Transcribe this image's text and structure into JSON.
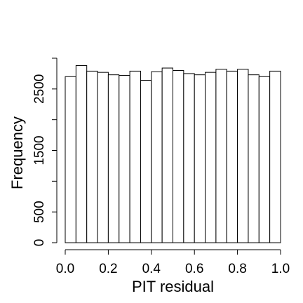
{
  "chart_data": {
    "type": "bar",
    "subtype": "histogram",
    "title": "",
    "xlabel": "PIT residual",
    "ylabel": "Frequency",
    "xlim": [
      0.0,
      1.0
    ],
    "ylim": [
      0,
      3000
    ],
    "bin_width": 0.05,
    "bins": [
      {
        "x0": 0.0,
        "x1": 0.05,
        "value": 2700
      },
      {
        "x0": 0.05,
        "x1": 0.1,
        "value": 2880
      },
      {
        "x0": 0.1,
        "x1": 0.15,
        "value": 2790
      },
      {
        "x0": 0.15,
        "x1": 0.2,
        "value": 2770
      },
      {
        "x0": 0.2,
        "x1": 0.25,
        "value": 2730
      },
      {
        "x0": 0.25,
        "x1": 0.3,
        "value": 2720
      },
      {
        "x0": 0.3,
        "x1": 0.35,
        "value": 2790
      },
      {
        "x0": 0.35,
        "x1": 0.4,
        "value": 2640
      },
      {
        "x0": 0.4,
        "x1": 0.45,
        "value": 2780
      },
      {
        "x0": 0.45,
        "x1": 0.5,
        "value": 2840
      },
      {
        "x0": 0.5,
        "x1": 0.55,
        "value": 2800
      },
      {
        "x0": 0.55,
        "x1": 0.6,
        "value": 2750
      },
      {
        "x0": 0.6,
        "x1": 0.65,
        "value": 2730
      },
      {
        "x0": 0.65,
        "x1": 0.7,
        "value": 2770
      },
      {
        "x0": 0.7,
        "x1": 0.75,
        "value": 2820
      },
      {
        "x0": 0.75,
        "x1": 0.8,
        "value": 2790
      },
      {
        "x0": 0.8,
        "x1": 0.85,
        "value": 2820
      },
      {
        "x0": 0.85,
        "x1": 0.9,
        "value": 2730
      },
      {
        "x0": 0.9,
        "x1": 0.95,
        "value": 2700
      },
      {
        "x0": 0.95,
        "x1": 1.0,
        "value": 2790
      }
    ],
    "x_ticks": [
      {
        "value": 0.0,
        "label": "0.0"
      },
      {
        "value": 0.2,
        "label": "0.2"
      },
      {
        "value": 0.4,
        "label": "0.4"
      },
      {
        "value": 0.6,
        "label": "0.6"
      },
      {
        "value": 0.8,
        "label": "0.8"
      },
      {
        "value": 1.0,
        "label": "1.0"
      }
    ],
    "y_ticks": [
      {
        "value": 0,
        "label": "0"
      },
      {
        "value": 500,
        "label": "500"
      },
      {
        "value": 1000,
        "label": ""
      },
      {
        "value": 1500,
        "label": "1500"
      },
      {
        "value": 2000,
        "label": ""
      },
      {
        "value": 2500,
        "label": "2500"
      },
      {
        "value": 3000,
        "label": ""
      }
    ],
    "grid": false,
    "legend": "none",
    "bar_fill": "#ffffff",
    "bar_stroke": "#000000"
  }
}
